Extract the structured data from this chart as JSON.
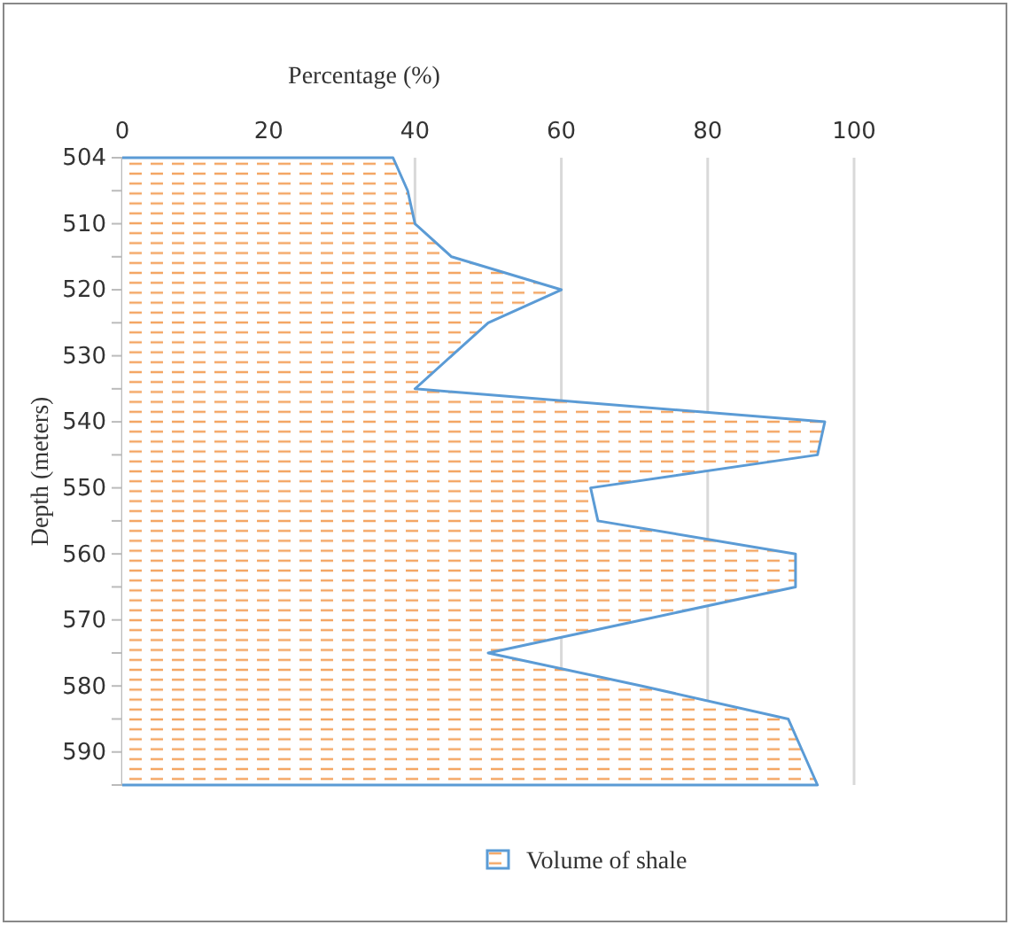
{
  "chart_data": {
    "type": "area",
    "orientation": "horizontal",
    "xlabel": "Percentage (%)",
    "ylabel": "Depth (meters)",
    "categories": [
      "504",
      null,
      "510",
      null,
      "520",
      null,
      "530",
      null,
      "540",
      null,
      "550",
      null,
      "560",
      null,
      "570",
      null,
      "580",
      null,
      "590",
      null
    ],
    "series": [
      {
        "name": "Volume of shale",
        "color": "#5b9bd5",
        "values": [
          37,
          39,
          40,
          45,
          60,
          50,
          45,
          40,
          96,
          95,
          64,
          65,
          92,
          92,
          71,
          50,
          71,
          91,
          93,
          95
        ]
      }
    ],
    "xlim": [
      0,
      100
    ],
    "xticks": [
      0,
      20,
      40,
      60,
      80,
      100
    ],
    "grid": "x",
    "legend": "bottom"
  }
}
